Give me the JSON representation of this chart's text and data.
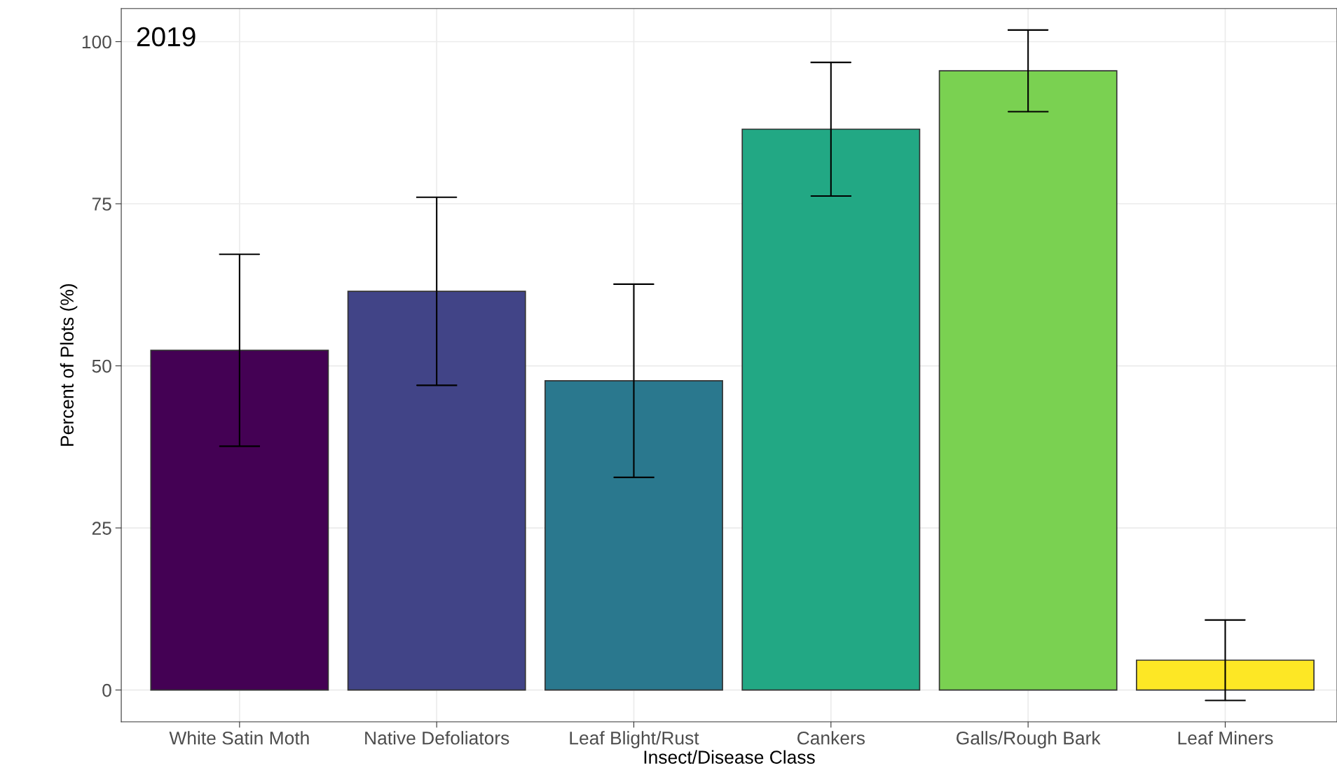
{
  "chart_data": {
    "type": "bar",
    "categories": [
      "White Satin Moth",
      "Native Defoliators",
      "Leaf Blight/Rust",
      "Cankers",
      "Galls/Rough Bark",
      "Leaf Miners"
    ],
    "values": [
      52.4,
      61.5,
      47.7,
      86.5,
      95.5,
      4.6
    ],
    "errors": [
      14.8,
      14.5,
      14.9,
      10.3,
      6.3,
      6.2
    ],
    "colors": [
      "#440154",
      "#414487",
      "#2a788e",
      "#22a884",
      "#7ad151",
      "#fde725"
    ],
    "xlabel": "Insect/Disease Class",
    "ylabel": "Percent of Plots (%)",
    "annotations": [
      "2019"
    ],
    "ylim": [
      -4.9,
      105.1
    ],
    "yticks": [
      0,
      25,
      50,
      75,
      100
    ],
    "grid": true,
    "legend": false
  }
}
